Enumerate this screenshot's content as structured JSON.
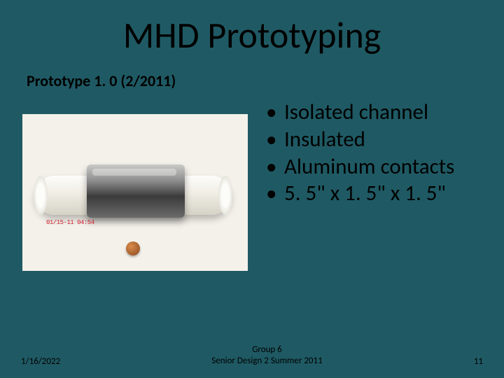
{
  "title": "MHD Prototyping",
  "subtitle": "Prototype 1. 0 (2/2011)",
  "bullets": [
    "Isolated channel",
    "Insulated",
    "Aluminum contacts",
    "5. 5\" x 1. 5\" x 1. 5\""
  ],
  "image": {
    "background_color": "#f4f1ea",
    "label_text": "01/15-11  04:54"
  },
  "footer": {
    "date": "1/16/2022",
    "center_line1": "Group 6",
    "center_line2": "Senior Design 2 Summer 2011",
    "page_number": "11"
  },
  "slide_background": "#1f5a64"
}
